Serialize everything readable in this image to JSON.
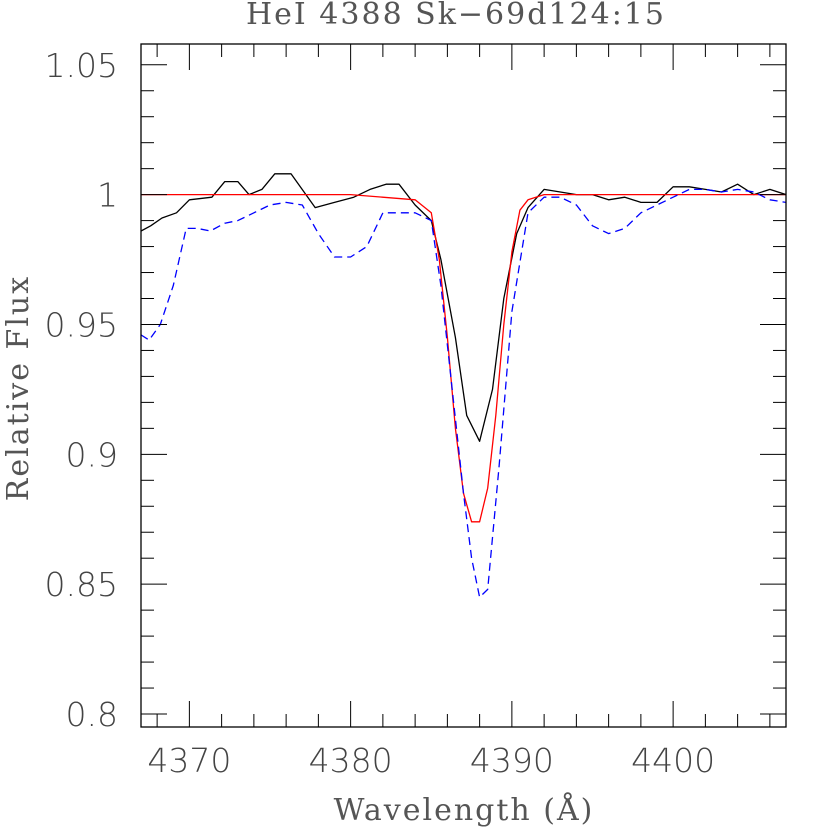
{
  "chart_data": {
    "type": "line",
    "title": "HeI 4388 Sk−69d124:15",
    "xlabel": "Wavelength (Å)",
    "ylabel": "Relative Flux",
    "xlim": [
      4367,
      4407
    ],
    "ylim": [
      0.795,
      1.058
    ],
    "x_ticks": [
      4370,
      4380,
      4390,
      4400
    ],
    "x_tick_labels": [
      "4370",
      "4380",
      "4390",
      "4400"
    ],
    "y_ticks": [
      0.8,
      0.85,
      0.9,
      0.95,
      1.0,
      1.05
    ],
    "y_tick_labels": [
      "0.8",
      "0.85",
      "0.9",
      "0.95",
      "1",
      "1.05"
    ],
    "x_minor_step": 2,
    "y_minor_step": 0.01,
    "grid": false,
    "colors": {
      "observed": "#000000",
      "model": "#ff0000",
      "comparison": "#0000ff",
      "axis": "#000000"
    },
    "series": [
      {
        "style": "solid",
        "color": "#000000",
        "x": [
          4367,
          4367.6,
          4368.3,
          4369.2,
          4370,
          4371.4,
          4372.2,
          4373,
          4373.7,
          4374.5,
          4375.3,
          4376.3,
          4377.8,
          4379,
          4380.2,
          4381.2,
          4382.2,
          4383,
          4384,
          4385,
          4385.6,
          4386.5,
          4387.2,
          4388.0,
          4388.8,
          4389.5,
          4390.3,
          4391.0,
          4392.0,
          4393.0,
          4394.0,
          4395.0,
          4396.0,
          4397.0,
          4398.0,
          4399.0,
          4400.0,
          4401.0,
          4402.0,
          4403.0,
          4404.0,
          4405.0,
          4406.0,
          4407.0
        ],
        "y": [
          0.986,
          0.988,
          0.991,
          0.993,
          0.998,
          0.999,
          1.005,
          1.005,
          1.0,
          1.002,
          1.008,
          1.008,
          0.995,
          0.997,
          0.999,
          1.002,
          1.004,
          1.004,
          0.996,
          0.99,
          0.975,
          0.945,
          0.915,
          0.905,
          0.925,
          0.96,
          0.985,
          0.995,
          1.002,
          1.001,
          1.0,
          1.0,
          0.998,
          0.999,
          0.997,
          0.997,
          1.003,
          1.003,
          1.002,
          1.001,
          1.004,
          1.0,
          1.002,
          1.0
        ]
      },
      {
        "style": "solid",
        "color": "#ff0000",
        "x": [
          4367,
          4380,
          4384,
          4385,
          4385.5,
          4386,
          4386.5,
          4387,
          4387.5,
          4388,
          4388.5,
          4389,
          4389.5,
          4390,
          4390.5,
          4391,
          4392,
          4396,
          4407
        ],
        "y": [
          1.0,
          1.0,
          0.998,
          0.993,
          0.975,
          0.945,
          0.91,
          0.885,
          0.874,
          0.874,
          0.887,
          0.915,
          0.95,
          0.978,
          0.994,
          0.998,
          1.0,
          1.0,
          1.0
        ]
      },
      {
        "style": "dashed",
        "color": "#0000ff",
        "x": [
          4367,
          4367.5,
          4368.2,
          4369,
          4369.8,
          4370.5,
          4371.3,
          4372.2,
          4373,
          4374,
          4375,
          4376,
          4377,
          4378,
          4379,
          4380,
          4381,
          4382,
          4383,
          4384,
          4385,
          4385.6,
          4386.3,
          4387,
          4387.5,
          4388,
          4388.5,
          4389.2,
          4390,
          4391,
          4392,
          4393,
          4394,
          4395,
          4396,
          4397,
          4398,
          4399,
          4400,
          4401,
          4402,
          4403,
          4404,
          4405,
          4406,
          4407
        ],
        "y": [
          0.946,
          0.944,
          0.95,
          0.965,
          0.987,
          0.987,
          0.986,
          0.989,
          0.99,
          0.993,
          0.996,
          0.997,
          0.996,
          0.985,
          0.976,
          0.976,
          0.98,
          0.993,
          0.993,
          0.993,
          0.99,
          0.965,
          0.925,
          0.885,
          0.86,
          0.845,
          0.848,
          0.895,
          0.955,
          0.993,
          0.999,
          0.999,
          0.996,
          0.988,
          0.985,
          0.987,
          0.993,
          0.996,
          0.999,
          1.002,
          1.002,
          1.001,
          1.002,
          1.001,
          0.998,
          0.997
        ]
      }
    ]
  }
}
